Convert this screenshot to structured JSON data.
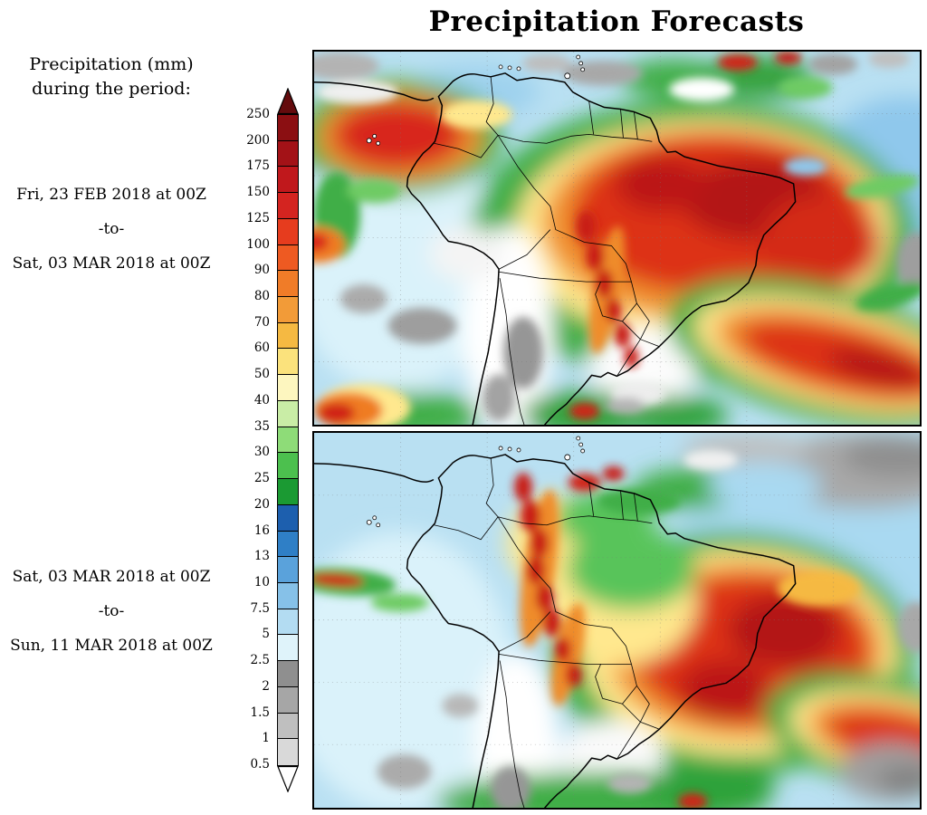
{
  "title": "Precipitation Forecasts",
  "legend": {
    "heading_line1": "Precipitation (mm)",
    "heading_line2": "during the period:",
    "levels": [
      "250",
      "200",
      "175",
      "150",
      "125",
      "100",
      "90",
      "80",
      "70",
      "60",
      "50",
      "40",
      "35",
      "30",
      "25",
      "20",
      "16",
      "13",
      "10",
      "7.5",
      "5",
      "2.5",
      "2",
      "1.5",
      "1",
      "0.5"
    ],
    "segment_colors": [
      "#8b0f12",
      "#a31217",
      "#c0181c",
      "#d42420",
      "#e63c1e",
      "#ee5a22",
      "#f07c28",
      "#f29b38",
      "#f5b942",
      "#fbe27c",
      "#fdf6bf",
      "#c9eda6",
      "#8edc78",
      "#4cc04e",
      "#1b9a33",
      "#1d5fae",
      "#2f7fc6",
      "#5aa2db",
      "#86c1e8",
      "#b3dcf2",
      "#dff3fa",
      "#8f8f8f",
      "#a6a6a6",
      "#bfbfbf",
      "#d9d9d9"
    ],
    "arrow_top_color": "#640b0d",
    "arrow_bottom_color": "#ffffff"
  },
  "periods": {
    "top": {
      "start": "Fri, 23 FEB 2018 at 00Z",
      "separator": "-to-",
      "end": "Sat, 03 MAR 2018 at 00Z"
    },
    "bottom": {
      "start": "Sat, 03 MAR 2018 at 00Z",
      "separator": "-to-",
      "end": "Sun, 11 MAR 2018 at 00Z"
    }
  },
  "chart_data": {
    "type": "heatmap",
    "title": "Precipitation Forecasts",
    "units": "mm",
    "legend_title": "Precipitation (mm) during the period:",
    "legend_position": "left",
    "colorbar_levels_mm": [
      250,
      200,
      175,
      150,
      125,
      100,
      90,
      80,
      70,
      60,
      50,
      40,
      35,
      30,
      25,
      20,
      16,
      13,
      10,
      7.5,
      5,
      2.5,
      2,
      1.5,
      1,
      0.5
    ],
    "colorbar_colors_top_to_bottom": [
      "#8b0f12",
      "#a31217",
      "#c0181c",
      "#d42420",
      "#e63c1e",
      "#ee5a22",
      "#f07c28",
      "#f29b38",
      "#f5b942",
      "#fbe27c",
      "#fdf6bf",
      "#c9eda6",
      "#8edc78",
      "#4cc04e",
      "#1b9a33",
      "#1d5fae",
      "#2f7fc6",
      "#5aa2db",
      "#86c1e8",
      "#b3dcf2",
      "#dff3fa",
      "#8f8f8f",
      "#a6a6a6",
      "#bfbfbf",
      "#d9d9d9"
    ],
    "panels": [
      {
        "position": "top",
        "period_start": "Fri, 23 FEB 2018 at 00Z",
        "period_end": "Sat, 03 MAR 2018 at 00Z",
        "region": "South America"
      },
      {
        "position": "bottom",
        "period_start": "Sat, 03 MAR 2018 at 00Z",
        "period_end": "Sun, 11 MAR 2018 at 00Z",
        "region": "South America"
      }
    ]
  }
}
